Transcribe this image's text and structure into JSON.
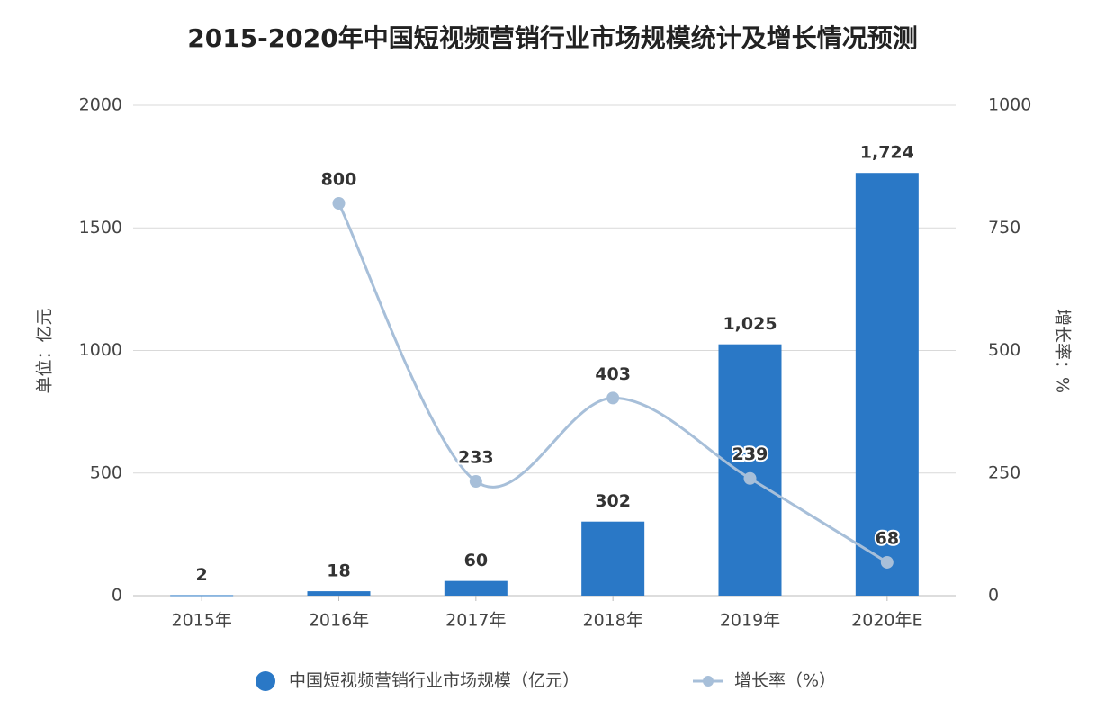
{
  "chart_data": {
    "type": "bar",
    "title": "2015-2020年中国短视频营销行业市场规模统计及增长情况预测",
    "y_label": "单位：亿元",
    "y2_label": "增长率：%",
    "categories": [
      "2015年",
      "2016年",
      "2017年",
      "2018年",
      "2019年",
      "2020年E"
    ],
    "series": [
      {
        "name": "中国短视频营销行业市场规模（亿元）",
        "type": "bar",
        "color": "#2a78c6",
        "values": [
          2,
          18,
          60,
          302,
          1025,
          1724
        ],
        "value_labels": [
          "2",
          "18",
          "60",
          "302",
          "1,025",
          "1,724"
        ]
      },
      {
        "name": "增长率（%）",
        "type": "line",
        "axis": "y2",
        "color": "#a7bfd9",
        "values": [
          null,
          800,
          233,
          403,
          239,
          68
        ]
      }
    ],
    "ylim": [
      0,
      2000
    ],
    "yticks": [
      0,
      500,
      1000,
      1500,
      2000
    ],
    "y2lim": [
      0,
      1000
    ],
    "y2ticks": [
      0,
      250,
      500,
      750,
      1000
    ],
    "grid": true
  }
}
